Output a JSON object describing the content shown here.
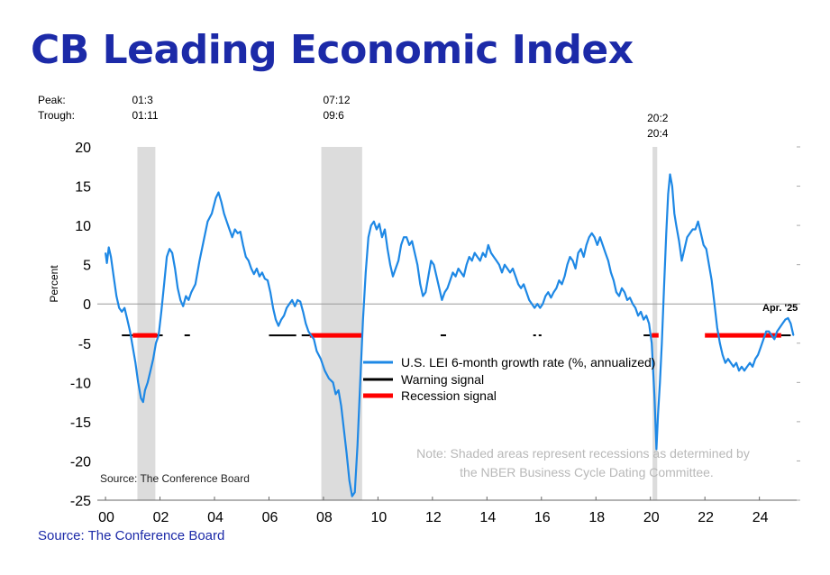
{
  "page": {
    "title": "CB Leading Economic Index",
    "source_footer": "Source: The Conference Board"
  },
  "chart_data": {
    "type": "line",
    "ylabel": "Percent",
    "ylim": [
      -25,
      20
    ],
    "yticks": [
      20,
      15,
      10,
      5,
      0,
      -5,
      -10,
      -15,
      -20,
      -25
    ],
    "xlim": [
      1999.7,
      2025.5
    ],
    "xticks": [
      {
        "x": 2000,
        "label": "00"
      },
      {
        "x": 2002,
        "label": "02"
      },
      {
        "x": 2004,
        "label": "04"
      },
      {
        "x": 2006,
        "label": "06"
      },
      {
        "x": 2008,
        "label": "08"
      },
      {
        "x": 2010,
        "label": "10"
      },
      {
        "x": 2012,
        "label": "12"
      },
      {
        "x": 2014,
        "label": "14"
      },
      {
        "x": 2016,
        "label": "16"
      },
      {
        "x": 2018,
        "label": "18"
      },
      {
        "x": 2020,
        "label": "20"
      },
      {
        "x": 2022,
        "label": "22"
      },
      {
        "x": 2024,
        "label": "24"
      }
    ],
    "grid": false,
    "peak_label": "Peak:",
    "trough_label": "Trough:",
    "recessions": [
      {
        "start": 2001.17,
        "end": 2001.83,
        "peak": "01:3",
        "trough": "01:11"
      },
      {
        "start": 2007.92,
        "end": 2009.42,
        "peak": "07:12",
        "trough": "09:6"
      },
      {
        "start": 2020.08,
        "end": 2020.25,
        "peak": "20:2",
        "trough": "20:4"
      }
    ],
    "series": [
      {
        "name": "U.S. LEI 6-month growth rate (%, annualized)",
        "color": "#1e88e5",
        "points": [
          [
            2000.0,
            6.5
          ],
          [
            2000.05,
            5.2
          ],
          [
            2000.12,
            7.2
          ],
          [
            2000.2,
            6.0
          ],
          [
            2000.3,
            3.5
          ],
          [
            2000.4,
            1.0
          ],
          [
            2000.5,
            -0.5
          ],
          [
            2000.6,
            -1.0
          ],
          [
            2000.7,
            -0.5
          ],
          [
            2000.8,
            -2.0
          ],
          [
            2000.9,
            -3.5
          ],
          [
            2001.0,
            -5.5
          ],
          [
            2001.1,
            -7.5
          ],
          [
            2001.2,
            -10.0
          ],
          [
            2001.3,
            -12.0
          ],
          [
            2001.38,
            -12.5
          ],
          [
            2001.45,
            -11.0
          ],
          [
            2001.55,
            -10.0
          ],
          [
            2001.65,
            -8.5
          ],
          [
            2001.75,
            -7.0
          ],
          [
            2001.85,
            -5.0
          ],
          [
            2001.95,
            -4.0
          ],
          [
            2002.05,
            -1.0
          ],
          [
            2002.15,
            2.5
          ],
          [
            2002.25,
            6.0
          ],
          [
            2002.35,
            7.0
          ],
          [
            2002.45,
            6.5
          ],
          [
            2002.55,
            4.5
          ],
          [
            2002.65,
            2.0
          ],
          [
            2002.75,
            0.5
          ],
          [
            2002.85,
            -0.3
          ],
          [
            2002.95,
            1.0
          ],
          [
            2003.05,
            0.5
          ],
          [
            2003.15,
            1.5
          ],
          [
            2003.3,
            2.5
          ],
          [
            2003.45,
            5.5
          ],
          [
            2003.6,
            8.0
          ],
          [
            2003.75,
            10.5
          ],
          [
            2003.9,
            11.5
          ],
          [
            2004.05,
            13.5
          ],
          [
            2004.15,
            14.2
          ],
          [
            2004.25,
            13.0
          ],
          [
            2004.35,
            11.5
          ],
          [
            2004.45,
            10.5
          ],
          [
            2004.55,
            9.5
          ],
          [
            2004.65,
            8.5
          ],
          [
            2004.75,
            9.5
          ],
          [
            2004.85,
            9.0
          ],
          [
            2004.95,
            9.2
          ],
          [
            2005.05,
            7.5
          ],
          [
            2005.15,
            6.0
          ],
          [
            2005.25,
            5.5
          ],
          [
            2005.35,
            4.5
          ],
          [
            2005.45,
            3.8
          ],
          [
            2005.55,
            4.5
          ],
          [
            2005.65,
            3.5
          ],
          [
            2005.75,
            4.0
          ],
          [
            2005.85,
            3.2
          ],
          [
            2005.95,
            3.0
          ],
          [
            2006.05,
            1.5
          ],
          [
            2006.15,
            -0.5
          ],
          [
            2006.25,
            -2.0
          ],
          [
            2006.35,
            -2.8
          ],
          [
            2006.45,
            -2.0
          ],
          [
            2006.55,
            -1.5
          ],
          [
            2006.65,
            -0.5
          ],
          [
            2006.75,
            0.0
          ],
          [
            2006.85,
            0.5
          ],
          [
            2006.95,
            -0.3
          ],
          [
            2007.05,
            0.5
          ],
          [
            2007.15,
            0.3
          ],
          [
            2007.25,
            -1.0
          ],
          [
            2007.35,
            -2.5
          ],
          [
            2007.45,
            -3.5
          ],
          [
            2007.55,
            -4.0
          ],
          [
            2007.65,
            -4.5
          ],
          [
            2007.75,
            -6.0
          ],
          [
            2007.9,
            -7.0
          ],
          [
            2008.05,
            -8.5
          ],
          [
            2008.2,
            -9.5
          ],
          [
            2008.35,
            -10.0
          ],
          [
            2008.45,
            -11.5
          ],
          [
            2008.55,
            -11.0
          ],
          [
            2008.65,
            -13.0
          ],
          [
            2008.75,
            -16.0
          ],
          [
            2008.85,
            -19.0
          ],
          [
            2008.95,
            -22.5
          ],
          [
            2009.05,
            -24.5
          ],
          [
            2009.15,
            -24.0
          ],
          [
            2009.25,
            -18.0
          ],
          [
            2009.35,
            -10.0
          ],
          [
            2009.45,
            -2.0
          ],
          [
            2009.55,
            4.0
          ],
          [
            2009.65,
            8.5
          ],
          [
            2009.75,
            10.0
          ],
          [
            2009.85,
            10.5
          ],
          [
            2009.95,
            9.5
          ],
          [
            2010.05,
            10.2
          ],
          [
            2010.15,
            8.5
          ],
          [
            2010.25,
            9.5
          ],
          [
            2010.35,
            7.0
          ],
          [
            2010.45,
            5.0
          ],
          [
            2010.55,
            3.5
          ],
          [
            2010.65,
            4.5
          ],
          [
            2010.75,
            5.5
          ],
          [
            2010.85,
            7.5
          ],
          [
            2010.95,
            8.5
          ],
          [
            2011.05,
            8.5
          ],
          [
            2011.15,
            7.5
          ],
          [
            2011.25,
            8.0
          ],
          [
            2011.35,
            6.5
          ],
          [
            2011.45,
            5.0
          ],
          [
            2011.55,
            2.5
          ],
          [
            2011.65,
            1.0
          ],
          [
            2011.75,
            1.5
          ],
          [
            2011.85,
            3.5
          ],
          [
            2011.95,
            5.5
          ],
          [
            2012.05,
            5.0
          ],
          [
            2012.15,
            3.5
          ],
          [
            2012.25,
            2.0
          ],
          [
            2012.35,
            0.5
          ],
          [
            2012.45,
            1.5
          ],
          [
            2012.55,
            2.0
          ],
          [
            2012.65,
            3.0
          ],
          [
            2012.75,
            4.0
          ],
          [
            2012.85,
            3.5
          ],
          [
            2012.95,
            4.5
          ],
          [
            2013.05,
            4.0
          ],
          [
            2013.15,
            3.5
          ],
          [
            2013.25,
            5.0
          ],
          [
            2013.35,
            6.0
          ],
          [
            2013.45,
            5.5
          ],
          [
            2013.55,
            6.5
          ],
          [
            2013.65,
            6.0
          ],
          [
            2013.75,
            5.5
          ],
          [
            2013.85,
            6.5
          ],
          [
            2013.95,
            6.0
          ],
          [
            2014.05,
            7.5
          ],
          [
            2014.15,
            6.5
          ],
          [
            2014.25,
            6.0
          ],
          [
            2014.35,
            5.5
          ],
          [
            2014.45,
            5.0
          ],
          [
            2014.55,
            4.0
          ],
          [
            2014.65,
            5.0
          ],
          [
            2014.75,
            4.5
          ],
          [
            2014.85,
            4.0
          ],
          [
            2014.95,
            4.5
          ],
          [
            2015.05,
            3.5
          ],
          [
            2015.15,
            2.5
          ],
          [
            2015.25,
            2.0
          ],
          [
            2015.35,
            2.5
          ],
          [
            2015.45,
            1.5
          ],
          [
            2015.55,
            0.5
          ],
          [
            2015.65,
            0.0
          ],
          [
            2015.75,
            -0.5
          ],
          [
            2015.85,
            0.0
          ],
          [
            2015.95,
            -0.5
          ],
          [
            2016.05,
            0.0
          ],
          [
            2016.15,
            1.0
          ],
          [
            2016.25,
            1.5
          ],
          [
            2016.35,
            0.8
          ],
          [
            2016.45,
            1.5
          ],
          [
            2016.55,
            2.0
          ],
          [
            2016.65,
            3.0
          ],
          [
            2016.75,
            2.5
          ],
          [
            2016.85,
            3.5
          ],
          [
            2016.95,
            5.0
          ],
          [
            2017.05,
            6.0
          ],
          [
            2017.15,
            5.5
          ],
          [
            2017.25,
            4.5
          ],
          [
            2017.35,
            6.5
          ],
          [
            2017.45,
            7.0
          ],
          [
            2017.55,
            6.0
          ],
          [
            2017.65,
            7.5
          ],
          [
            2017.75,
            8.5
          ],
          [
            2017.85,
            9.0
          ],
          [
            2017.95,
            8.5
          ],
          [
            2018.05,
            7.5
          ],
          [
            2018.15,
            8.5
          ],
          [
            2018.25,
            7.5
          ],
          [
            2018.35,
            6.5
          ],
          [
            2018.45,
            5.5
          ],
          [
            2018.55,
            4.0
          ],
          [
            2018.65,
            3.0
          ],
          [
            2018.75,
            1.5
          ],
          [
            2018.85,
            1.0
          ],
          [
            2018.95,
            2.0
          ],
          [
            2019.05,
            1.5
          ],
          [
            2019.15,
            0.5
          ],
          [
            2019.25,
            0.8
          ],
          [
            2019.35,
            0.0
          ],
          [
            2019.45,
            -0.5
          ],
          [
            2019.55,
            -1.5
          ],
          [
            2019.65,
            -1.0
          ],
          [
            2019.75,
            -2.0
          ],
          [
            2019.85,
            -1.5
          ],
          [
            2019.95,
            -2.5
          ],
          [
            2020.05,
            -5.0
          ],
          [
            2020.15,
            -12.0
          ],
          [
            2020.22,
            -18.5
          ],
          [
            2020.28,
            -14.0
          ],
          [
            2020.35,
            -10.0
          ],
          [
            2020.42,
            -5.0
          ],
          [
            2020.5,
            2.0
          ],
          [
            2020.58,
            9.0
          ],
          [
            2020.65,
            14.0
          ],
          [
            2020.72,
            16.5
          ],
          [
            2020.8,
            15.0
          ],
          [
            2020.88,
            11.5
          ],
          [
            2020.95,
            10.0
          ],
          [
            2021.05,
            8.0
          ],
          [
            2021.15,
            5.5
          ],
          [
            2021.25,
            7.0
          ],
          [
            2021.35,
            8.5
          ],
          [
            2021.45,
            9.0
          ],
          [
            2021.55,
            9.5
          ],
          [
            2021.65,
            9.5
          ],
          [
            2021.75,
            10.5
          ],
          [
            2021.85,
            9.0
          ],
          [
            2021.95,
            7.5
          ],
          [
            2022.05,
            7.0
          ],
          [
            2022.15,
            5.0
          ],
          [
            2022.25,
            3.0
          ],
          [
            2022.35,
            0.0
          ],
          [
            2022.45,
            -3.0
          ],
          [
            2022.55,
            -5.0
          ],
          [
            2022.65,
            -6.5
          ],
          [
            2022.75,
            -7.5
          ],
          [
            2022.85,
            -7.0
          ],
          [
            2022.95,
            -7.5
          ],
          [
            2023.05,
            -8.0
          ],
          [
            2023.15,
            -7.5
          ],
          [
            2023.25,
            -8.5
          ],
          [
            2023.35,
            -8.0
          ],
          [
            2023.45,
            -8.5
          ],
          [
            2023.55,
            -8.0
          ],
          [
            2023.65,
            -7.5
          ],
          [
            2023.75,
            -8.0
          ],
          [
            2023.85,
            -7.0
          ],
          [
            2023.95,
            -6.5
          ],
          [
            2024.05,
            -5.5
          ],
          [
            2024.15,
            -4.5
          ],
          [
            2024.25,
            -3.5
          ],
          [
            2024.35,
            -3.5
          ],
          [
            2024.45,
            -4.0
          ],
          [
            2024.55,
            -4.5
          ],
          [
            2024.65,
            -3.5
          ],
          [
            2024.75,
            -3.0
          ],
          [
            2024.85,
            -2.5
          ],
          [
            2024.95,
            -2.0
          ],
          [
            2025.05,
            -1.8
          ],
          [
            2025.15,
            -2.5
          ],
          [
            2025.25,
            -4.0
          ]
        ]
      },
      {
        "name": "Warning signal",
        "color": "#000000",
        "segments": [
          [
            2000.6,
            2001.0
          ],
          [
            2001.9,
            2002.1
          ],
          [
            2002.9,
            2003.1
          ],
          [
            2006.0,
            2007.0
          ],
          [
            2007.2,
            2007.5
          ],
          [
            2012.3,
            2012.5
          ],
          [
            2015.7,
            2015.8
          ],
          [
            2015.9,
            2016.0
          ],
          [
            2019.75,
            2020.05
          ],
          [
            2024.8,
            2025.15
          ]
        ]
      },
      {
        "name": "Recession signal",
        "color": "#ff0000",
        "segments": [
          [
            2001.0,
            2001.9
          ],
          [
            2007.5,
            2009.4
          ],
          [
            2020.05,
            2020.3
          ],
          [
            2022.0,
            2024.8
          ]
        ]
      }
    ],
    "signal_level": -4,
    "annotations": {
      "last_point": "Apr. '25",
      "source_inside": "Source: The Conference Board",
      "note_line1": "Note: Shaded areas represent recessions as determined by",
      "note_line2": "the NBER Business Cycle Dating Committee."
    },
    "legend_placement": "center"
  }
}
